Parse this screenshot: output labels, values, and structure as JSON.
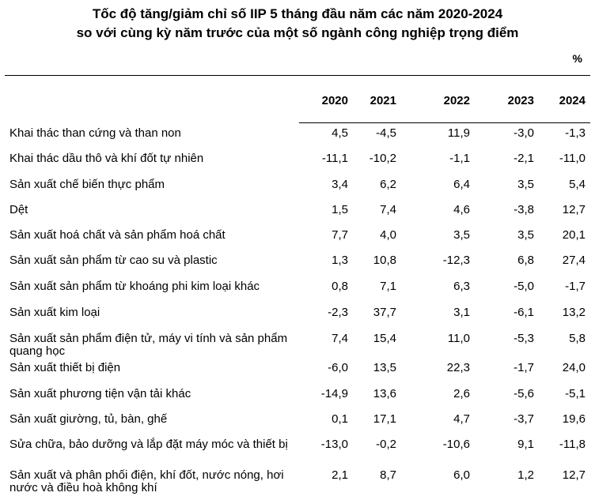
{
  "title": {
    "line1": "Tốc độ tăng/giảm chỉ số IIP 5 tháng đầu năm các năm 2020-2024",
    "line2": "so với cùng kỳ năm trước của một số ngành công nghiệp trọng điểm"
  },
  "unit": "%",
  "columns": [
    "2020",
    "2021",
    "2022",
    "2023",
    "2024"
  ],
  "rows": [
    {
      "label": "Khai thác than cứng và than non",
      "values": [
        "4,5",
        "-4,5",
        "11,9",
        "-3,0",
        "-1,3"
      ]
    },
    {
      "label": "Khai thác dầu thô và khí đốt tự nhiên",
      "values": [
        "-11,1",
        "-10,2",
        "-1,1",
        "-2,1",
        "-11,0"
      ]
    },
    {
      "label": "Sản xuất chế biến thực phẩm",
      "values": [
        "3,4",
        "6,2",
        "6,4",
        "3,5",
        "5,4"
      ]
    },
    {
      "label": "Dệt",
      "values": [
        "1,5",
        "7,4",
        "4,6",
        "-3,8",
        "12,7"
      ]
    },
    {
      "label": "Sản xuất hoá chất và sản phẩm hoá chất",
      "values": [
        "7,7",
        "4,0",
        "3,5",
        "3,5",
        "20,1"
      ]
    },
    {
      "label": "Sản xuất sản phẩm từ cao su và plastic",
      "values": [
        "1,3",
        "10,8",
        "-12,3",
        "6,8",
        "27,4"
      ]
    },
    {
      "label": "Sản xuất sản phẩm từ khoáng phi kim loại khác",
      "values": [
        "0,8",
        "7,1",
        "6,3",
        "-5,0",
        "-1,7"
      ]
    },
    {
      "label": "Sản xuất kim loại",
      "values": [
        "-2,3",
        "37,7",
        "3,1",
        "-6,1",
        "13,2"
      ]
    },
    {
      "label": "Sản xuất sản phẩm điện tử, máy vi tính và sản phẩm quang học",
      "values": [
        "7,4",
        "15,4",
        "11,0",
        "-5,3",
        "5,8"
      ]
    },
    {
      "label": "Sản xuất thiết bị điện",
      "values": [
        "-6,0",
        "13,5",
        "22,3",
        "-1,7",
        "24,0"
      ]
    },
    {
      "label": "Sản xuất phương tiện vận tải khác",
      "values": [
        "-14,9",
        "13,6",
        "2,6",
        "-5,6",
        "-5,1"
      ]
    },
    {
      "label": "Sản xuất giường, tủ, bàn, ghế",
      "values": [
        "0,1",
        "17,1",
        "4,7",
        "-3,7",
        "19,6"
      ]
    },
    {
      "label": "Sửa chữa, bảo dưỡng và lắp đặt máy móc và thiết bị",
      "values": [
        "-13,0",
        "-0,2",
        "-10,6",
        "9,1",
        "-11,8"
      ]
    },
    {
      "label": "Sản xuất và phân phối điện, khí đốt, nước nóng, hơi nước và điều hoà không khí",
      "values": [
        "2,1",
        "8,7",
        "6,0",
        "1,2",
        "12,7"
      ]
    }
  ]
}
